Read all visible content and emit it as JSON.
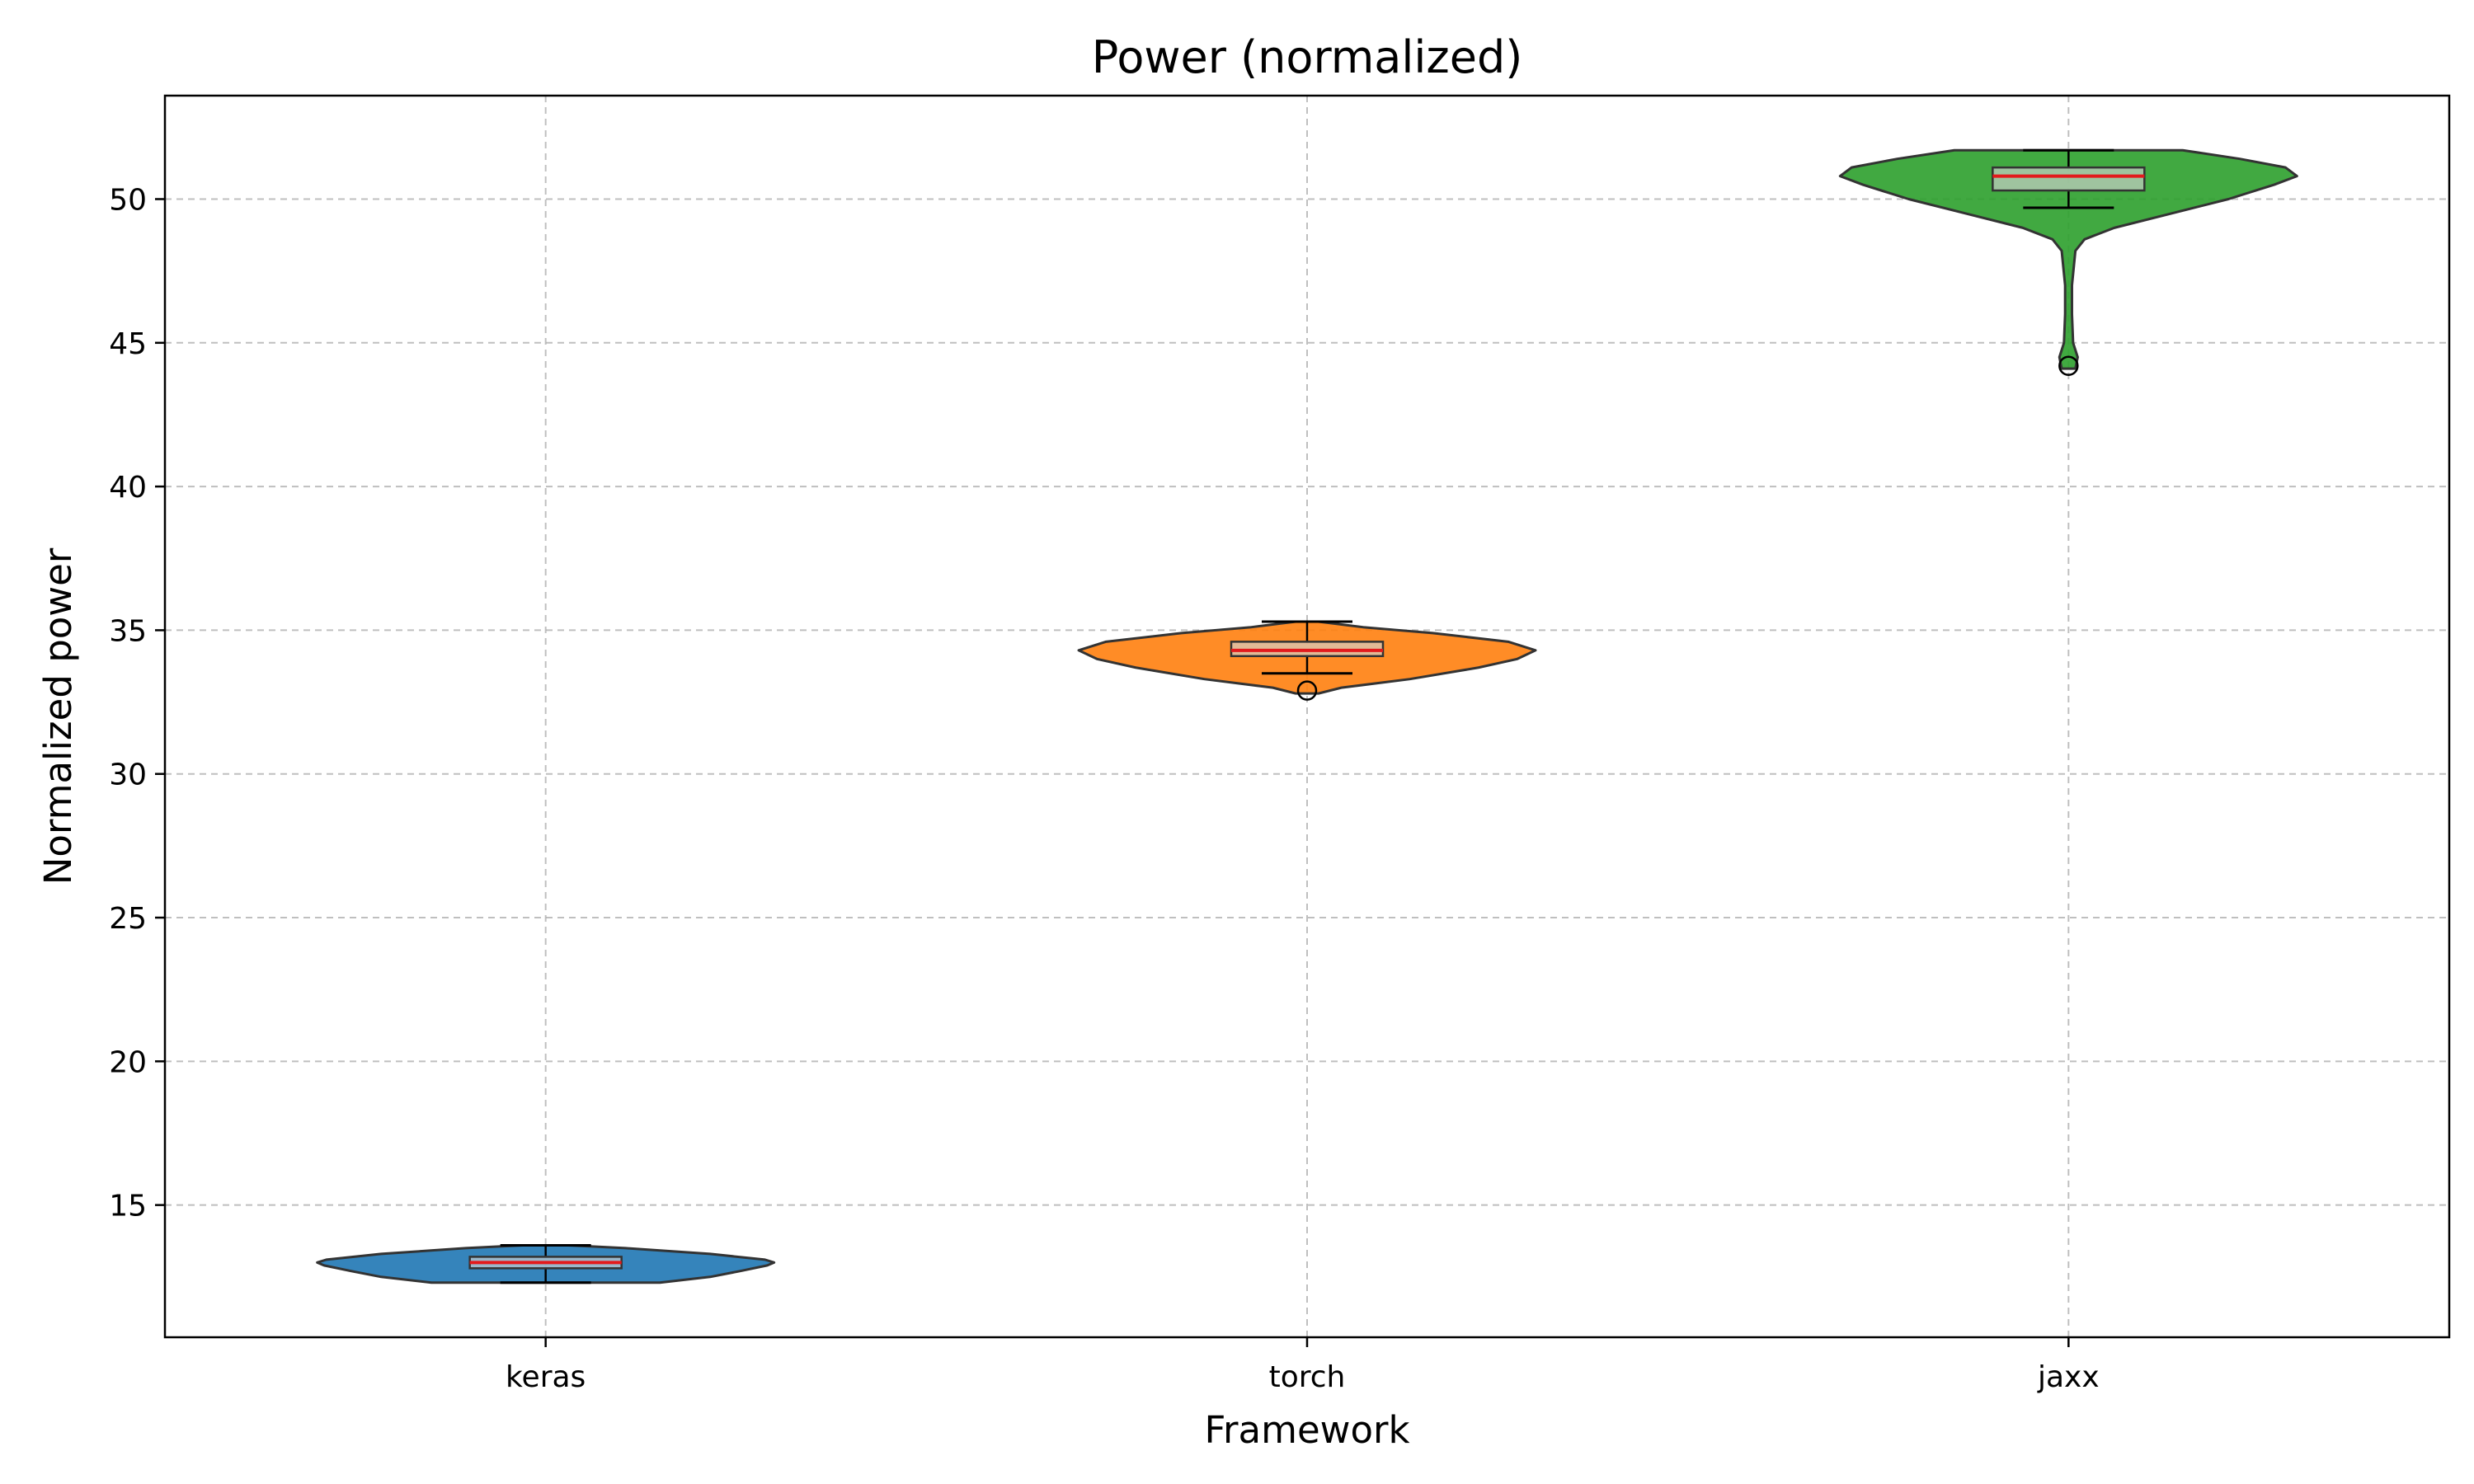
{
  "chart_data": {
    "type": "violin",
    "title": "Power (normalized)",
    "xlabel": "Framework",
    "ylabel": "Normalized power",
    "categories": [
      "keras",
      "torch",
      "jaxx"
    ],
    "ylim": [
      10.4,
      53.6
    ],
    "yticks": [
      15,
      20,
      25,
      30,
      35,
      40,
      45,
      50
    ],
    "grid": true,
    "colors": [
      "#1f77b4",
      "#ff7f0e",
      "#2ca02c"
    ],
    "median_color": "#e31a1c",
    "box_fill": "#d3d3d3",
    "series": [
      {
        "category": "keras",
        "min": 12.3,
        "q1": 12.8,
        "median": 13.0,
        "q3": 13.2,
        "max": 13.6,
        "outliers": [],
        "density": [
          [
            12.3,
            0.5
          ],
          [
            12.5,
            0.72
          ],
          [
            12.7,
            0.85
          ],
          [
            12.9,
            0.97
          ],
          [
            13.0,
            1.0
          ],
          [
            13.1,
            0.96
          ],
          [
            13.3,
            0.72
          ],
          [
            13.5,
            0.35
          ],
          [
            13.6,
            0.1
          ]
        ]
      },
      {
        "category": "torch",
        "min": 33.5,
        "q1": 34.1,
        "median": 34.3,
        "q3": 34.6,
        "max": 35.3,
        "outliers": [
          32.9
        ],
        "density": [
          [
            32.8,
            0.05
          ],
          [
            33.0,
            0.15
          ],
          [
            33.3,
            0.45
          ],
          [
            33.7,
            0.75
          ],
          [
            34.0,
            0.92
          ],
          [
            34.3,
            1.0
          ],
          [
            34.6,
            0.88
          ],
          [
            34.9,
            0.55
          ],
          [
            35.1,
            0.25
          ],
          [
            35.3,
            0.05
          ]
        ]
      },
      {
        "category": "jaxx",
        "min": 49.7,
        "q1": 50.3,
        "median": 50.8,
        "q3": 51.1,
        "max": 51.7,
        "outliers": [
          44.2
        ],
        "density": [
          [
            44.1,
            0.03
          ],
          [
            44.5,
            0.04
          ],
          [
            45.0,
            0.02
          ],
          [
            46.0,
            0.015
          ],
          [
            47.0,
            0.015
          ],
          [
            48.2,
            0.03
          ],
          [
            48.6,
            0.07
          ],
          [
            49.0,
            0.2
          ],
          [
            49.5,
            0.45
          ],
          [
            50.0,
            0.7
          ],
          [
            50.5,
            0.9
          ],
          [
            50.8,
            1.0
          ],
          [
            51.1,
            0.95
          ],
          [
            51.4,
            0.75
          ],
          [
            51.7,
            0.5
          ]
        ]
      }
    ]
  }
}
